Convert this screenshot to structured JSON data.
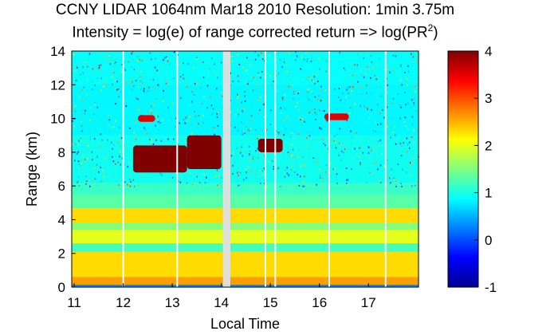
{
  "title_line1": "CCNY LIDAR 1064nm Mar18 2010 Resolution: 1min 3.75m",
  "title_line2_prefix": "Intensity = log(e) of range corrected return => log(PR",
  "title_line2_sup": "2",
  "title_line2_suffix": ")",
  "chart_data": {
    "type": "heatmap",
    "title": "CCNY LIDAR 1064nm Mar18 2010 Resolution: 1min 3.75m",
    "subtitle": "Intensity = log(e) of range corrected return => log(PR2)",
    "xlabel": "Local Time",
    "ylabel": "Range (km)",
    "xlim": [
      10.95,
      18.02
    ],
    "ylim": [
      0,
      14
    ],
    "xticks": [
      11,
      12,
      13,
      14,
      15,
      16,
      17
    ],
    "yticks": [
      0,
      2,
      4,
      6,
      8,
      10,
      12,
      14
    ],
    "colorbar": {
      "min": -1,
      "max": 4,
      "ticks": [
        -1,
        0,
        1,
        2,
        3,
        4
      ]
    },
    "data_gaps_hours": [
      12.0,
      13.1,
      14.05,
      14.1,
      14.15,
      14.9,
      15.1,
      16.2,
      17.35
    ],
    "layers": [
      {
        "name": "surface boundary layer",
        "range_km": [
          0,
          2.1
        ],
        "value": 2.3
      },
      {
        "name": "aerosol layer",
        "range_km": [
          3.8,
          4.7
        ],
        "value": 2.3
      },
      {
        "name": "aerosol layer",
        "range_km": [
          2.6,
          3.4
        ],
        "value": 2.0
      },
      {
        "name": "cloud",
        "time_h": [
          12.2,
          13.3
        ],
        "range_km": [
          6.8,
          8.4
        ],
        "value": 4.0
      },
      {
        "name": "cloud",
        "time_h": [
          13.3,
          14.0
        ],
        "range_km": [
          7.0,
          9.0
        ],
        "value": 4.0
      },
      {
        "name": "cloud",
        "time_h": [
          14.75,
          15.25
        ],
        "range_km": [
          8.0,
          8.8
        ],
        "value": 4.0
      },
      {
        "name": "cloud",
        "time_h": [
          12.3,
          12.65
        ],
        "range_km": [
          9.8,
          10.2
        ],
        "value": 3.5
      },
      {
        "name": "cloud",
        "time_h": [
          16.1,
          16.6
        ],
        "range_km": [
          9.9,
          10.3
        ],
        "value": 3.5
      }
    ]
  }
}
